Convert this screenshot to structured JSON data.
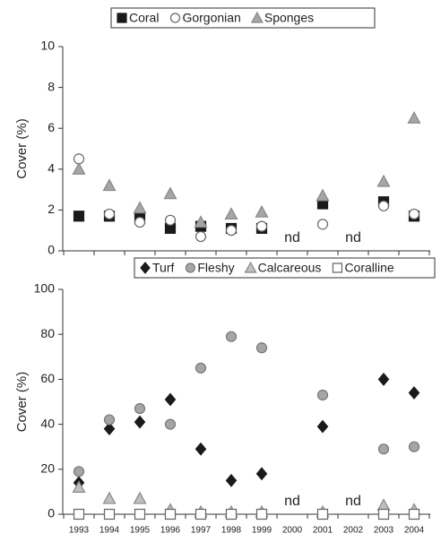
{
  "chart_data": [
    {
      "type": "scatter",
      "y_label": "Cover (%)",
      "categories": [
        "1993",
        "1994",
        "1995",
        "1996",
        "1997",
        "1998",
        "1999",
        "2000",
        "2001",
        "2002",
        "2003",
        "2004"
      ],
      "ylim": [
        0,
        10
      ],
      "yticks": [
        0,
        2,
        4,
        6,
        8,
        10
      ],
      "annotations": [
        {
          "text": "nd",
          "x": "2000"
        },
        {
          "text": "nd",
          "x": "2002"
        }
      ],
      "series": [
        {
          "name": "Coral",
          "marker": "square",
          "color": "#1a1a1a",
          "stroke": "#1a1a1a",
          "values": [
            1.7,
            1.7,
            1.6,
            1.1,
            1.2,
            1.1,
            1.1,
            null,
            2.3,
            null,
            2.4,
            1.7
          ]
        },
        {
          "name": "Gorgonian",
          "marker": "circle",
          "color": "#ffffff",
          "stroke": "#666666",
          "values": [
            4.5,
            1.8,
            1.4,
            1.5,
            0.7,
            1.0,
            1.2,
            null,
            1.3,
            null,
            2.2,
            1.8
          ]
        },
        {
          "name": "Sponges",
          "marker": "triangle",
          "color": "#a6a6a6",
          "stroke": "#888888",
          "values": [
            4.0,
            3.2,
            2.1,
            2.8,
            1.4,
            1.8,
            1.9,
            null,
            2.7,
            null,
            3.4,
            6.5
          ]
        }
      ]
    },
    {
      "type": "scatter",
      "y_label": "Cover (%)",
      "categories": [
        "1993",
        "1994",
        "1995",
        "1996",
        "1997",
        "1998",
        "1999",
        "2000",
        "2001",
        "2002",
        "2003",
        "2004"
      ],
      "ylim": [
        0,
        100
      ],
      "yticks": [
        0,
        20,
        40,
        60,
        80,
        100
      ],
      "annotations": [
        {
          "text": "nd",
          "x": "2000"
        },
        {
          "text": "nd",
          "x": "2002"
        }
      ],
      "series": [
        {
          "name": "Turf",
          "marker": "diamond",
          "color": "#1a1a1a",
          "stroke": "#1a1a1a",
          "values": [
            14,
            38,
            41,
            51,
            29,
            15,
            18,
            null,
            39,
            null,
            60,
            54
          ]
        },
        {
          "name": "Fleshy",
          "marker": "circle",
          "color": "#a6a6a6",
          "stroke": "#777777",
          "values": [
            19,
            42,
            47,
            40,
            65,
            79,
            74,
            null,
            53,
            null,
            29,
            30
          ]
        },
        {
          "name": "Calcareous",
          "marker": "triangle",
          "color": "#bfbfbf",
          "stroke": "#888888",
          "values": [
            12,
            7,
            7,
            2,
            1,
            1,
            1,
            null,
            1,
            null,
            4,
            2
          ]
        },
        {
          "name": "Coralline",
          "marker": "square",
          "color": "#ffffff",
          "stroke": "#666666",
          "values": [
            0,
            0,
            0,
            0,
            0,
            0,
            0,
            null,
            0,
            null,
            0,
            0
          ]
        }
      ]
    }
  ]
}
